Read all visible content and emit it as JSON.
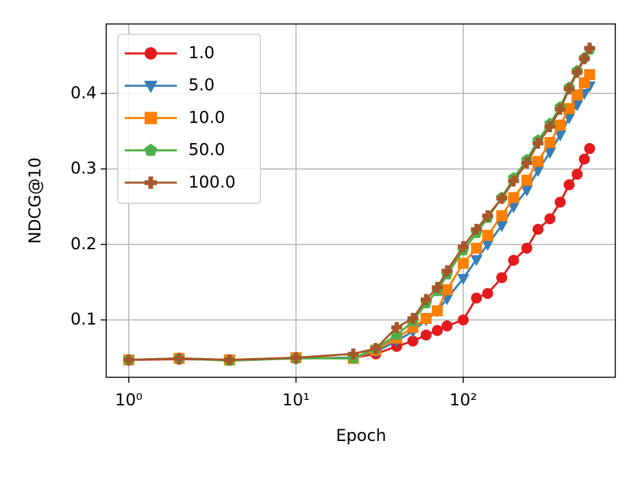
{
  "chart_data": {
    "type": "line",
    "xlabel": "Epoch",
    "ylabel": "NDCG@10",
    "xscale": "log",
    "grid": true,
    "legend": "upper left",
    "x": [
      1,
      2,
      4,
      10,
      22,
      30,
      40,
      50,
      60,
      70,
      80,
      100,
      120,
      140,
      170,
      200,
      240,
      280,
      330,
      380,
      430,
      480,
      530,
      570
    ],
    "series": [
      {
        "name": "1.0",
        "color": "#e41a1c",
        "marker": "circle",
        "values": [
          0.047,
          0.048,
          0.047,
          0.049,
          0.05,
          0.055,
          0.065,
          0.072,
          0.08,
          0.086,
          0.092,
          0.1,
          0.129,
          0.135,
          0.156,
          0.179,
          0.195,
          0.22,
          0.234,
          0.256,
          0.279,
          0.293,
          0.313,
          0.327
        ]
      },
      {
        "name": "5.0",
        "color": "#377eb8",
        "marker": "triangle-down",
        "values": [
          0.047,
          0.049,
          0.047,
          0.049,
          0.05,
          0.058,
          0.072,
          0.085,
          0.1,
          0.112,
          0.128,
          0.155,
          0.18,
          0.2,
          0.225,
          0.25,
          0.272,
          0.298,
          0.322,
          0.345,
          0.368,
          0.385,
          0.4,
          0.41
        ]
      },
      {
        "name": "10.0",
        "color": "#ff7f00",
        "marker": "square",
        "values": [
          0.047,
          0.049,
          0.047,
          0.05,
          0.049,
          0.06,
          0.076,
          0.09,
          0.102,
          0.112,
          0.14,
          0.175,
          0.195,
          0.212,
          0.238,
          0.262,
          0.285,
          0.31,
          0.335,
          0.358,
          0.38,
          0.398,
          0.414,
          0.425
        ]
      },
      {
        "name": "50.0",
        "color": "#4daf4a",
        "marker": "pentagon",
        "values": [
          0.047,
          0.049,
          0.046,
          0.049,
          0.049,
          0.062,
          0.08,
          0.098,
          0.122,
          0.138,
          0.16,
          0.192,
          0.215,
          0.235,
          0.262,
          0.288,
          0.312,
          0.338,
          0.36,
          0.382,
          0.408,
          0.43,
          0.447,
          0.458
        ]
      },
      {
        "name": "100.0",
        "color": "#a65628",
        "marker": "plus",
        "values": [
          0.047,
          0.049,
          0.047,
          0.05,
          0.055,
          0.062,
          0.09,
          0.102,
          0.127,
          0.143,
          0.165,
          0.197,
          0.22,
          0.238,
          0.261,
          0.284,
          0.308,
          0.334,
          0.356,
          0.379,
          0.406,
          0.428,
          0.446,
          0.46
        ]
      }
    ],
    "xlim": [
      0.733,
      812
    ],
    "ylim": [
      0.024,
      0.492
    ],
    "xticks": [
      {
        "value": 1,
        "label": "10⁰"
      },
      {
        "value": 10,
        "label": "10¹"
      },
      {
        "value": 100,
        "label": "10²"
      }
    ],
    "yticks": [
      0.1,
      0.2,
      0.3,
      0.4
    ]
  }
}
